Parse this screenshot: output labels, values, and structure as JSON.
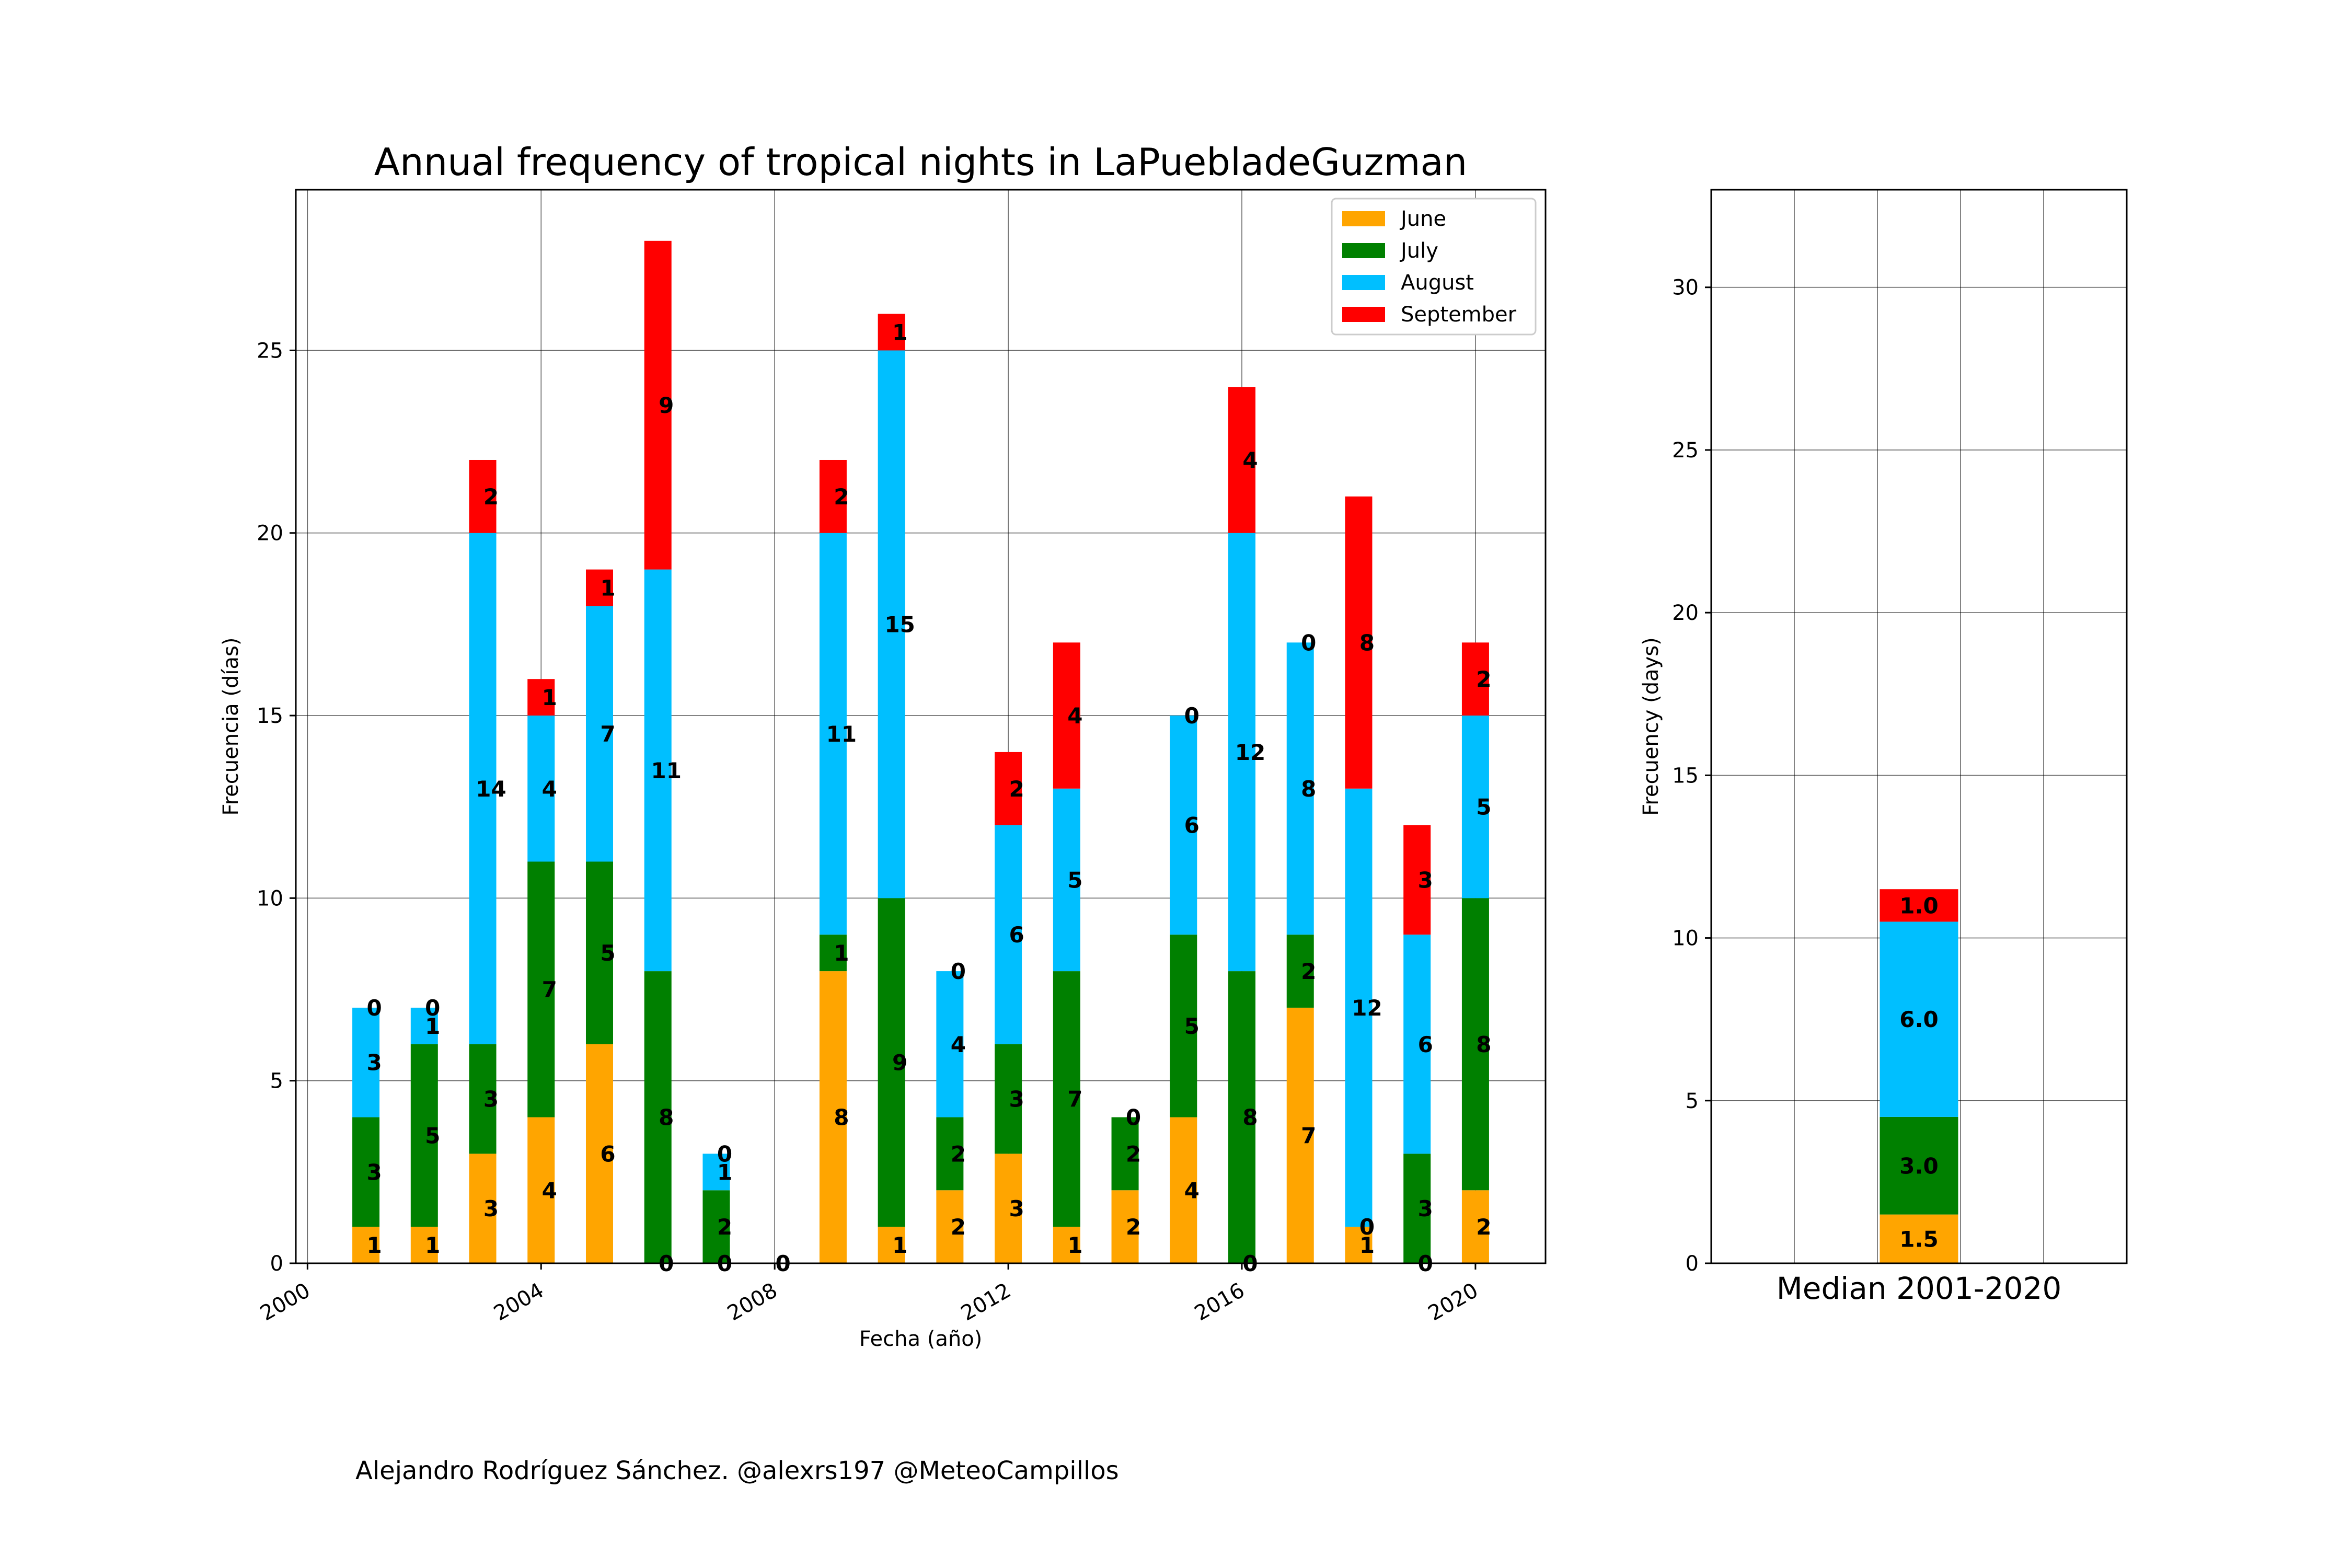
{
  "credit": "Alejandro Rodríguez Sánchez. @alexrs197 @MeteoCampillos",
  "chart_data": [
    {
      "type": "bar",
      "stacked": true,
      "title": "Annual frequency of tropical nights in LaPuebladeGuzman",
      "xlabel": "Fecha (año)",
      "ylabel": "Frecuencia (días)",
      "xlim": [
        1999.8,
        2021.2
      ],
      "ylim": [
        0,
        29.4
      ],
      "xticks": [
        "2000",
        "2004",
        "2008",
        "2012",
        "2016",
        "2020"
      ],
      "yticks": [
        "0",
        "5",
        "10",
        "15",
        "20",
        "25"
      ],
      "grid": true,
      "legend": "top-right",
      "x": [
        2001,
        2002,
        2003,
        2004,
        2005,
        2006,
        2007,
        2008,
        2009,
        2010,
        2011,
        2012,
        2013,
        2014,
        2015,
        2016,
        2017,
        2018,
        2019,
        2020
      ],
      "series": [
        {
          "name": "June",
          "color": "#ffa500",
          "values": [
            1,
            1,
            3,
            4,
            6,
            0,
            0,
            0,
            8,
            1,
            2,
            3,
            1,
            2,
            4,
            0,
            7,
            1,
            0,
            2
          ],
          "labels": [
            "1",
            "1",
            "3",
            "4",
            "6",
            "0",
            "0",
            "0",
            "8",
            "1",
            "2",
            "3",
            "1",
            "2",
            "4",
            "0",
            "7",
            "1",
            "0",
            "2"
          ]
        },
        {
          "name": "July",
          "color": "#008000",
          "values": [
            3,
            5,
            3,
            7,
            5,
            8,
            2,
            null,
            1,
            9,
            2,
            3,
            7,
            2,
            5,
            8,
            2,
            0,
            3,
            8
          ],
          "labels": [
            "3",
            "5",
            "3",
            "7",
            "5",
            "8",
            "2",
            "",
            "1",
            "9",
            "2",
            "3",
            "7",
            "2",
            "5",
            "8",
            "2",
            "0",
            "3",
            "8"
          ]
        },
        {
          "name": "August",
          "color": "#00bfff",
          "values": [
            3,
            1,
            14,
            4,
            7,
            11,
            1,
            null,
            11,
            15,
            4,
            6,
            5,
            0,
            6,
            12,
            8,
            12,
            6,
            5
          ],
          "labels": [
            "3",
            "1",
            "14",
            "4",
            "7",
            "11",
            "1",
            "",
            "11",
            "15",
            "4",
            "6",
            "5",
            "0",
            "6",
            "12",
            "8",
            "12",
            "6",
            "5"
          ]
        },
        {
          "name": "September",
          "color": "#ff0000",
          "values": [
            0,
            0,
            2,
            1,
            1,
            9,
            0,
            null,
            2,
            1,
            0,
            2,
            4,
            null,
            0,
            4,
            0,
            8,
            3,
            2
          ],
          "labels": [
            "0",
            "0",
            "2",
            "1",
            "1",
            "9",
            "0",
            "",
            "2",
            "1",
            "0",
            "2",
            "4",
            "",
            "0",
            "4",
            "0",
            "8",
            "3",
            "2"
          ]
        }
      ]
    },
    {
      "type": "bar",
      "stacked": true,
      "xlabel": "Median 2001-2020",
      "ylabel": "Frecuency (days)",
      "ylim": [
        0,
        33
      ],
      "yticks": [
        "0",
        "5",
        "10",
        "15",
        "20",
        "25",
        "30"
      ],
      "grid": true,
      "series": [
        {
          "name": "June",
          "color": "#ffa500",
          "value": 1.5,
          "label": "1.5"
        },
        {
          "name": "July",
          "color": "#008000",
          "value": 3.0,
          "label": "3.0"
        },
        {
          "name": "August",
          "color": "#00bfff",
          "value": 6.0,
          "label": "6.0"
        },
        {
          "name": "September",
          "color": "#ff0000",
          "value": 1.0,
          "label": "1.0"
        }
      ]
    }
  ]
}
